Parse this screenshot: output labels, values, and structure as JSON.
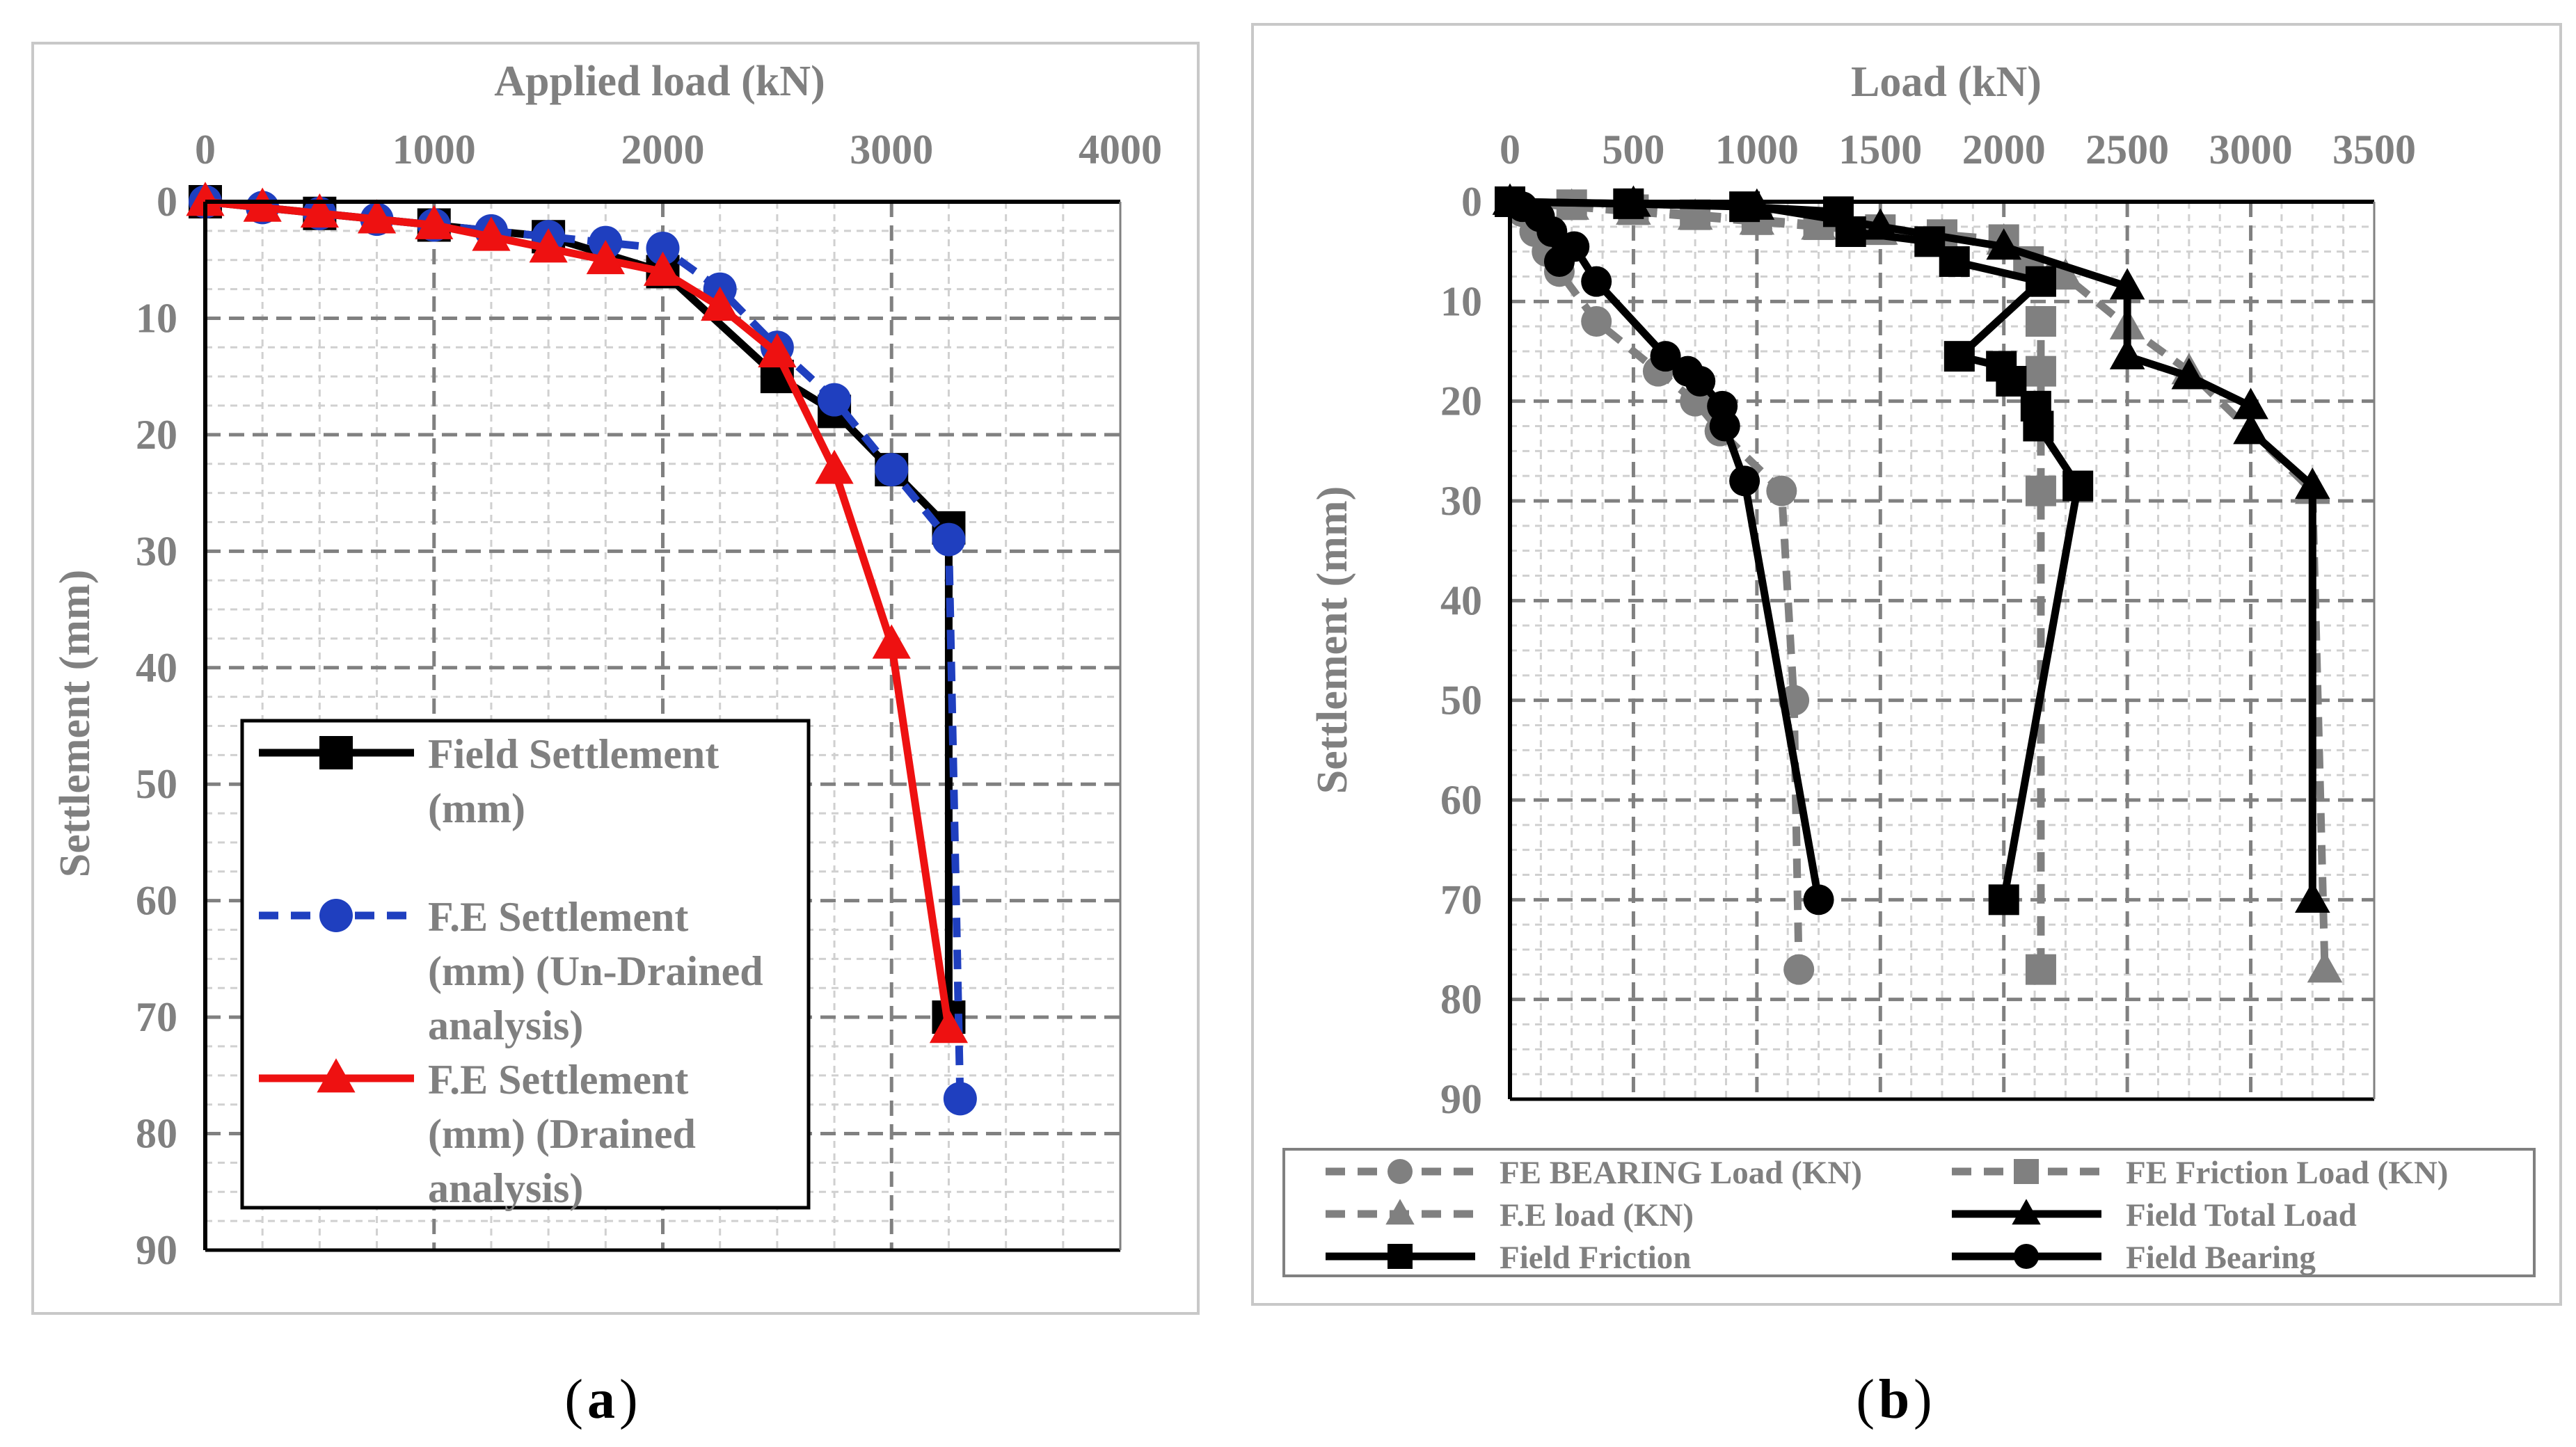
{
  "chart_data": [
    {
      "type": "line",
      "caption_letter": "a",
      "xlabel": "Applied load (kN)",
      "ylabel": "Settlement (mm)",
      "xlim": [
        0,
        4000
      ],
      "ylim": [
        0,
        90
      ],
      "x_ticks": [
        "0",
        "1000",
        "2000",
        "3000",
        "4000"
      ],
      "y_ticks": [
        "0",
        "10",
        "20",
        "30",
        "40",
        "50",
        "60",
        "70",
        "80",
        "90"
      ],
      "x_axis_position": "top",
      "y_axis_inverted": true,
      "grid": true,
      "legend_position": "bottom-left",
      "series": [
        {
          "name": "Field Settlement (mm)",
          "legend_lines": [
            "Field Settlement",
            "(mm)"
          ],
          "color": "#000000",
          "dash": "solid",
          "marker": "square",
          "x": [
            0,
            500,
            1000,
            1500,
            2000,
            2500,
            2750,
            3000,
            3250,
            3250
          ],
          "y": [
            0,
            1,
            2,
            3,
            6,
            15,
            18,
            23,
            28,
            70
          ]
        },
        {
          "name": "F.E Settlement (mm) (Un-Drained analysis)",
          "legend_lines": [
            "F.E Settlement",
            "(mm) (Un-Drained",
            "analysis)"
          ],
          "color": "#1f3fbf",
          "dash": "dashed",
          "marker": "circle",
          "x": [
            0,
            250,
            500,
            750,
            1000,
            1250,
            1500,
            1750,
            2000,
            2250,
            2500,
            2750,
            3000,
            3250,
            3300
          ],
          "y": [
            0,
            0.5,
            1,
            1.5,
            2,
            2.5,
            3,
            3.5,
            4,
            7.5,
            12.5,
            17,
            23,
            29,
            77
          ]
        },
        {
          "name": "F.E Settlement (mm) (Drained analysis)",
          "legend_lines": [
            "F.E Settlement",
            "(mm) (Drained",
            "analysis)"
          ],
          "color": "#ee1111",
          "dash": "solid",
          "marker": "triangle",
          "x": [
            0,
            250,
            500,
            750,
            1000,
            1250,
            1500,
            1750,
            2000,
            2250,
            2500,
            2750,
            3000,
            3250
          ],
          "y": [
            0,
            0.5,
            1,
            1.5,
            2,
            3,
            4,
            5,
            6,
            9,
            13,
            23,
            38,
            71
          ]
        }
      ]
    },
    {
      "type": "line",
      "caption_letter": "b",
      "xlabel": "Load (kN)",
      "ylabel": "Settlement (mm)",
      "xlim": [
        0,
        3500
      ],
      "ylim": [
        0,
        90
      ],
      "x_ticks": [
        "0",
        "500",
        "1000",
        "1500",
        "2000",
        "2500",
        "3000",
        "3500"
      ],
      "y_ticks": [
        "0",
        "10",
        "20",
        "30",
        "40",
        "50",
        "60",
        "70",
        "80",
        "90"
      ],
      "x_axis_position": "top",
      "y_axis_inverted": true,
      "grid": true,
      "legend_position": "bottom",
      "series": [
        {
          "name": "FE BEARING Load (KN)",
          "color": "#808080",
          "dash": "dashed",
          "marker": "circle",
          "x": [
            0,
            50,
            100,
            150,
            200,
            350,
            600,
            750,
            850,
            1100,
            1150,
            1170
          ],
          "y": [
            0,
            1,
            3,
            5,
            7,
            12,
            17,
            20,
            23,
            29,
            50,
            77
          ]
        },
        {
          "name": "FE Friction Load (KN)",
          "color": "#808080",
          "dash": "dashed",
          "marker": "square",
          "x": [
            0,
            250,
            500,
            750,
            1000,
            1250,
            1500,
            1750,
            2000,
            2100,
            2150,
            2150,
            2150,
            2150
          ],
          "y": [
            0,
            0.3,
            0.8,
            1.3,
            1.8,
            2.3,
            2.8,
            3.3,
            3.8,
            6,
            12,
            17,
            29,
            77
          ]
        },
        {
          "name": "F.E load (KN)",
          "color": "#808080",
          "dash": "dashed",
          "marker": "triangle",
          "x": [
            0,
            250,
            500,
            750,
            1000,
            1250,
            1500,
            1750,
            2000,
            2250,
            2500,
            2750,
            3000,
            3250,
            3300
          ],
          "y": [
            0,
            0.5,
            1,
            1.5,
            2,
            2.5,
            3,
            3.5,
            4,
            7.5,
            12.5,
            17,
            23,
            29,
            77
          ]
        },
        {
          "name": "Field Total Load",
          "color": "#000000",
          "dash": "solid",
          "marker": "triangle",
          "x": [
            0,
            500,
            1000,
            1500,
            2000,
            2500,
            2500,
            2750,
            3000,
            3000,
            3250,
            3250
          ],
          "y": [
            0,
            0.2,
            0.5,
            2.5,
            4.5,
            8.5,
            15.5,
            17.5,
            20.5,
            23,
            28.5,
            70
          ]
        },
        {
          "name": "Field Friction",
          "color": "#000000",
          "dash": "solid",
          "marker": "square",
          "x": [
            0,
            480,
            950,
            1330,
            1380,
            1700,
            1800,
            2150,
            1820,
            1990,
            2030,
            2130,
            2140,
            2300,
            2000
          ],
          "y": [
            0,
            0.2,
            0.5,
            1,
            3,
            4,
            6,
            8,
            15.5,
            16.5,
            18,
            20.5,
            22.5,
            28.5,
            70
          ]
        },
        {
          "name": "Field Bearing",
          "color": "#000000",
          "dash": "solid",
          "marker": "circle",
          "x": [
            0,
            50,
            120,
            170,
            200,
            260,
            350,
            630,
            720,
            770,
            860,
            870,
            950,
            1250
          ],
          "y": [
            0,
            0.5,
            1.5,
            3,
            6,
            4.5,
            8,
            15.5,
            17,
            18,
            20.5,
            22.5,
            28,
            70
          ]
        }
      ]
    }
  ]
}
